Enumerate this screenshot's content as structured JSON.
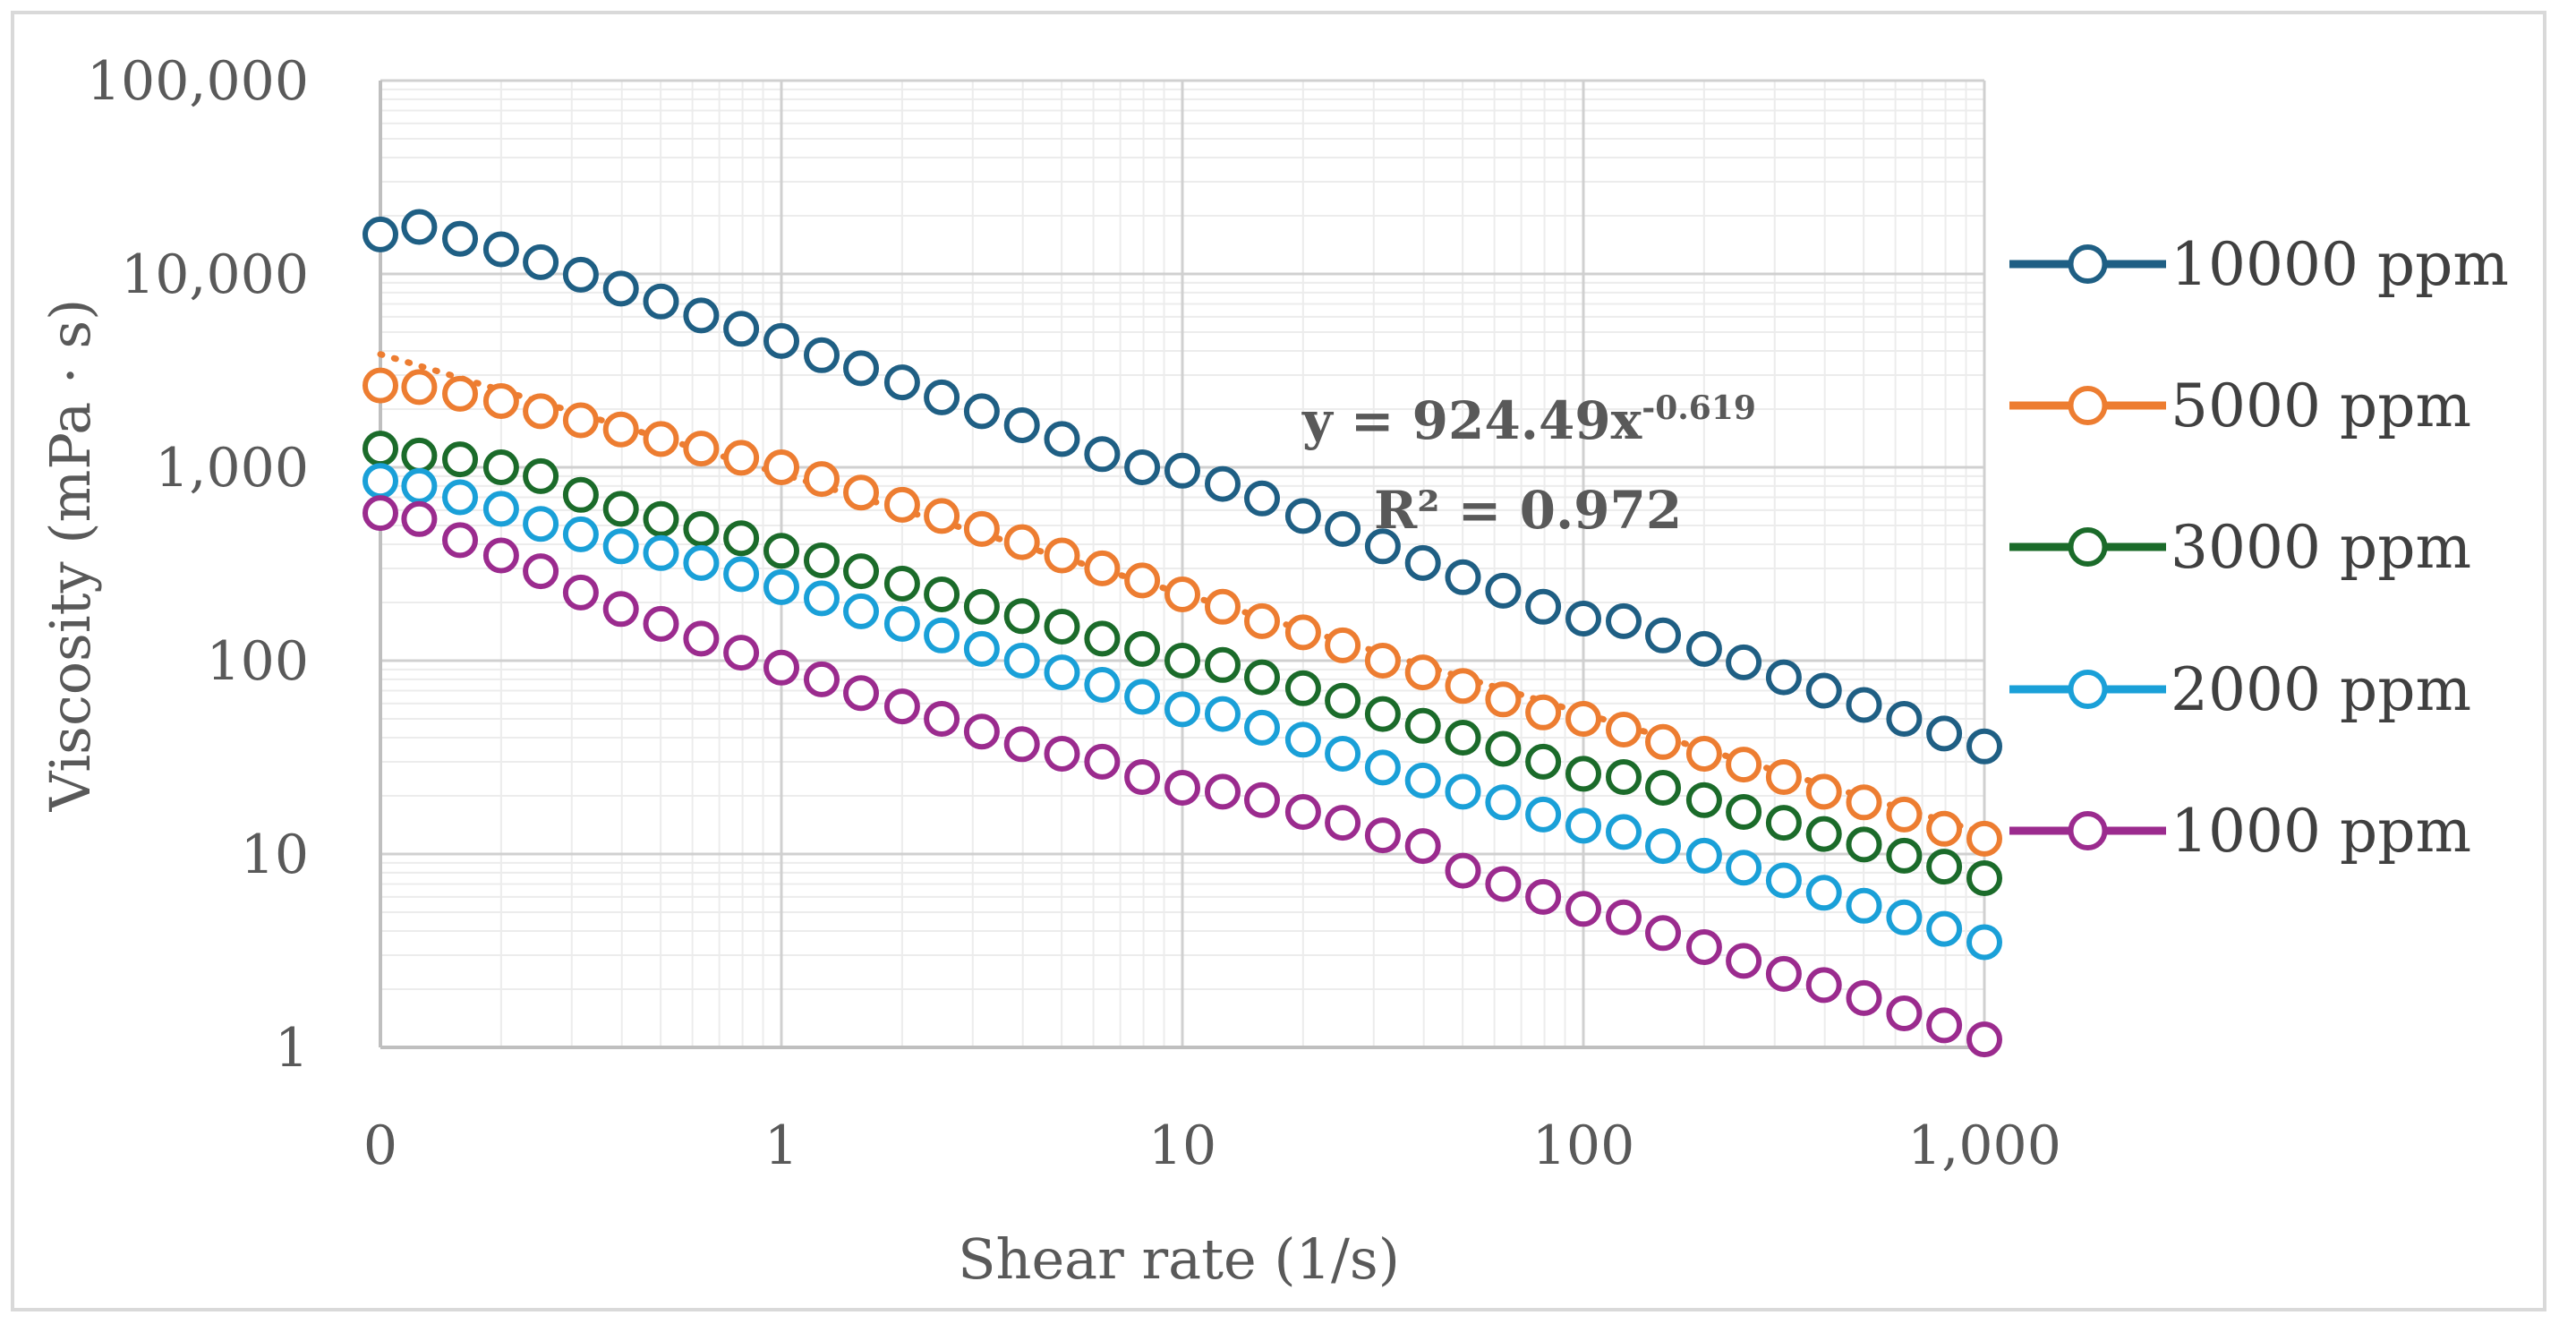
{
  "chart_data": {
    "type": "scatter",
    "xlabel": "Shear rate (1/s)",
    "ylabel": "Viscosity (mPa · s)",
    "x_scale": "log",
    "y_scale": "log",
    "xlim": [
      0.1,
      1000
    ],
    "ylim": [
      1,
      100000
    ],
    "x_tick_values": [
      0.1,
      1,
      10,
      100,
      1000
    ],
    "x_tick_labels": [
      "0",
      "1",
      "10",
      "100",
      "1,000"
    ],
    "y_tick_values": [
      1,
      10,
      100,
      1000,
      10000,
      100000
    ],
    "y_tick_labels": [
      "1",
      "10",
      "100",
      "1,000",
      "10,000",
      "100,000"
    ],
    "grid": true,
    "legend_position": "right",
    "marker": "open-circle",
    "series": [
      {
        "name": "10000 ppm",
        "color": "#1f5f84",
        "points": [
          [
            0.1,
            16000
          ],
          [
            0.125,
            17500
          ],
          [
            0.158,
            15200
          ],
          [
            0.2,
            13400
          ],
          [
            0.251,
            11500
          ],
          [
            0.316,
            9900
          ],
          [
            0.398,
            8400
          ],
          [
            0.501,
            7200
          ],
          [
            0.631,
            6100
          ],
          [
            0.794,
            5200
          ],
          [
            1,
            4500
          ],
          [
            1.26,
            3800
          ],
          [
            1.58,
            3250
          ],
          [
            2,
            2750
          ],
          [
            2.51,
            2300
          ],
          [
            3.16,
            1950
          ],
          [
            3.98,
            1650
          ],
          [
            5.01,
            1400
          ],
          [
            6.31,
            1170
          ],
          [
            7.94,
            1000
          ],
          [
            10,
            960
          ],
          [
            12.6,
            820
          ],
          [
            15.8,
            690
          ],
          [
            20,
            560
          ],
          [
            25.1,
            480
          ],
          [
            31.6,
            390
          ],
          [
            39.8,
            320
          ],
          [
            50.1,
            270
          ],
          [
            63.1,
            230
          ],
          [
            79.4,
            190
          ],
          [
            100,
            165
          ],
          [
            126,
            160
          ],
          [
            158,
            135
          ],
          [
            200,
            115
          ],
          [
            251,
            98
          ],
          [
            316,
            82
          ],
          [
            398,
            70
          ],
          [
            501,
            59
          ],
          [
            631,
            50
          ],
          [
            794,
            42
          ],
          [
            1000,
            36
          ]
        ]
      },
      {
        "name": "5000 ppm",
        "color": "#ed7d31",
        "points": [
          [
            0.1,
            2650
          ],
          [
            0.125,
            2600
          ],
          [
            0.158,
            2400
          ],
          [
            0.2,
            2200
          ],
          [
            0.251,
            1950
          ],
          [
            0.316,
            1750
          ],
          [
            0.398,
            1570
          ],
          [
            0.501,
            1400
          ],
          [
            0.631,
            1250
          ],
          [
            0.794,
            1120
          ],
          [
            1,
            1000
          ],
          [
            1.26,
            870
          ],
          [
            1.58,
            740
          ],
          [
            2,
            640
          ],
          [
            2.51,
            560
          ],
          [
            3.16,
            480
          ],
          [
            3.98,
            410
          ],
          [
            5.01,
            350
          ],
          [
            6.31,
            300
          ],
          [
            7.94,
            260
          ],
          [
            10,
            220
          ],
          [
            12.6,
            190
          ],
          [
            15.8,
            160
          ],
          [
            20,
            140
          ],
          [
            25.1,
            120
          ],
          [
            31.6,
            100
          ],
          [
            39.8,
            87
          ],
          [
            50.1,
            74
          ],
          [
            63.1,
            63
          ],
          [
            79.4,
            54
          ],
          [
            100,
            50
          ],
          [
            126,
            44
          ],
          [
            158,
            38
          ],
          [
            200,
            33
          ],
          [
            251,
            29
          ],
          [
            316,
            25
          ],
          [
            398,
            21
          ],
          [
            501,
            18.5
          ],
          [
            631,
            16
          ],
          [
            794,
            13.5
          ],
          [
            1000,
            12
          ]
        ]
      },
      {
        "name": "3000 ppm",
        "color": "#1b6b2a",
        "points": [
          [
            0.1,
            1250
          ],
          [
            0.125,
            1150
          ],
          [
            0.158,
            1100
          ],
          [
            0.2,
            1000
          ],
          [
            0.251,
            900
          ],
          [
            0.316,
            720
          ],
          [
            0.398,
            610
          ],
          [
            0.501,
            540
          ],
          [
            0.631,
            480
          ],
          [
            0.794,
            430
          ],
          [
            1,
            370
          ],
          [
            1.26,
            330
          ],
          [
            1.58,
            290
          ],
          [
            2,
            250
          ],
          [
            2.51,
            220
          ],
          [
            3.16,
            190
          ],
          [
            3.98,
            170
          ],
          [
            5.01,
            150
          ],
          [
            6.31,
            130
          ],
          [
            7.94,
            115
          ],
          [
            10,
            100
          ],
          [
            12.6,
            95
          ],
          [
            15.8,
            82
          ],
          [
            20,
            72
          ],
          [
            25.1,
            62
          ],
          [
            31.6,
            53
          ],
          [
            39.8,
            46
          ],
          [
            50.1,
            40
          ],
          [
            63.1,
            35
          ],
          [
            79.4,
            30
          ],
          [
            100,
            26
          ],
          [
            126,
            25
          ],
          [
            158,
            22
          ],
          [
            200,
            19
          ],
          [
            251,
            16.5
          ],
          [
            316,
            14.5
          ],
          [
            398,
            12.7
          ],
          [
            501,
            11.2
          ],
          [
            631,
            9.8
          ],
          [
            794,
            8.6
          ],
          [
            1000,
            7.5
          ]
        ]
      },
      {
        "name": "2000 ppm",
        "color": "#1aa0d8",
        "points": [
          [
            0.1,
            850
          ],
          [
            0.125,
            800
          ],
          [
            0.158,
            700
          ],
          [
            0.2,
            610
          ],
          [
            0.251,
            510
          ],
          [
            0.316,
            450
          ],
          [
            0.398,
            390
          ],
          [
            0.501,
            360
          ],
          [
            0.631,
            320
          ],
          [
            0.794,
            280
          ],
          [
            1,
            240
          ],
          [
            1.26,
            210
          ],
          [
            1.58,
            180
          ],
          [
            2,
            155
          ],
          [
            2.51,
            135
          ],
          [
            3.16,
            115
          ],
          [
            3.98,
            100
          ],
          [
            5.01,
            87
          ],
          [
            6.31,
            75
          ],
          [
            7.94,
            65
          ],
          [
            10,
            56
          ],
          [
            12.6,
            53
          ],
          [
            15.8,
            45
          ],
          [
            20,
            39
          ],
          [
            25.1,
            33
          ],
          [
            31.6,
            28
          ],
          [
            39.8,
            24
          ],
          [
            50.1,
            21
          ],
          [
            63.1,
            18.5
          ],
          [
            79.4,
            16
          ],
          [
            100,
            14
          ],
          [
            126,
            13
          ],
          [
            158,
            11
          ],
          [
            200,
            9.8
          ],
          [
            251,
            8.5
          ],
          [
            316,
            7.3
          ],
          [
            398,
            6.3
          ],
          [
            501,
            5.4
          ],
          [
            631,
            4.7
          ],
          [
            794,
            4.1
          ],
          [
            1000,
            3.5
          ]
        ]
      },
      {
        "name": "1000 ppm",
        "color": "#9b2b8e",
        "points": [
          [
            0.1,
            580
          ],
          [
            0.125,
            540
          ],
          [
            0.158,
            420
          ],
          [
            0.2,
            350
          ],
          [
            0.251,
            290
          ],
          [
            0.316,
            225
          ],
          [
            0.398,
            185
          ],
          [
            0.501,
            155
          ],
          [
            0.631,
            130
          ],
          [
            0.794,
            110
          ],
          [
            1,
            92
          ],
          [
            1.26,
            80
          ],
          [
            1.58,
            68
          ],
          [
            2,
            58
          ],
          [
            2.51,
            50
          ],
          [
            3.16,
            43
          ],
          [
            3.98,
            37
          ],
          [
            5.01,
            33
          ],
          [
            6.31,
            30
          ],
          [
            7.94,
            25
          ],
          [
            10,
            22
          ],
          [
            12.6,
            21
          ],
          [
            15.8,
            19
          ],
          [
            20,
            16.5
          ],
          [
            25.1,
            14.5
          ],
          [
            31.6,
            12.5
          ],
          [
            39.8,
            11
          ],
          [
            50.1,
            8.2
          ],
          [
            63.1,
            7
          ],
          [
            79.4,
            6
          ],
          [
            100,
            5.2
          ],
          [
            126,
            4.7
          ],
          [
            158,
            3.9
          ],
          [
            200,
            3.3
          ],
          [
            251,
            2.8
          ],
          [
            316,
            2.4
          ],
          [
            398,
            2.1
          ],
          [
            501,
            1.8
          ],
          [
            631,
            1.5
          ],
          [
            794,
            1.3
          ],
          [
            1000,
            1.1
          ]
        ]
      }
    ],
    "trendline": {
      "series": "5000 ppm",
      "type": "power",
      "a": 924.49,
      "b": -0.619,
      "style": "dotted",
      "color": "#ed7d31",
      "equation_base": "y = 924.49x",
      "equation_exponent": "-0.619",
      "r2_label": "R² = 0.972"
    }
  }
}
